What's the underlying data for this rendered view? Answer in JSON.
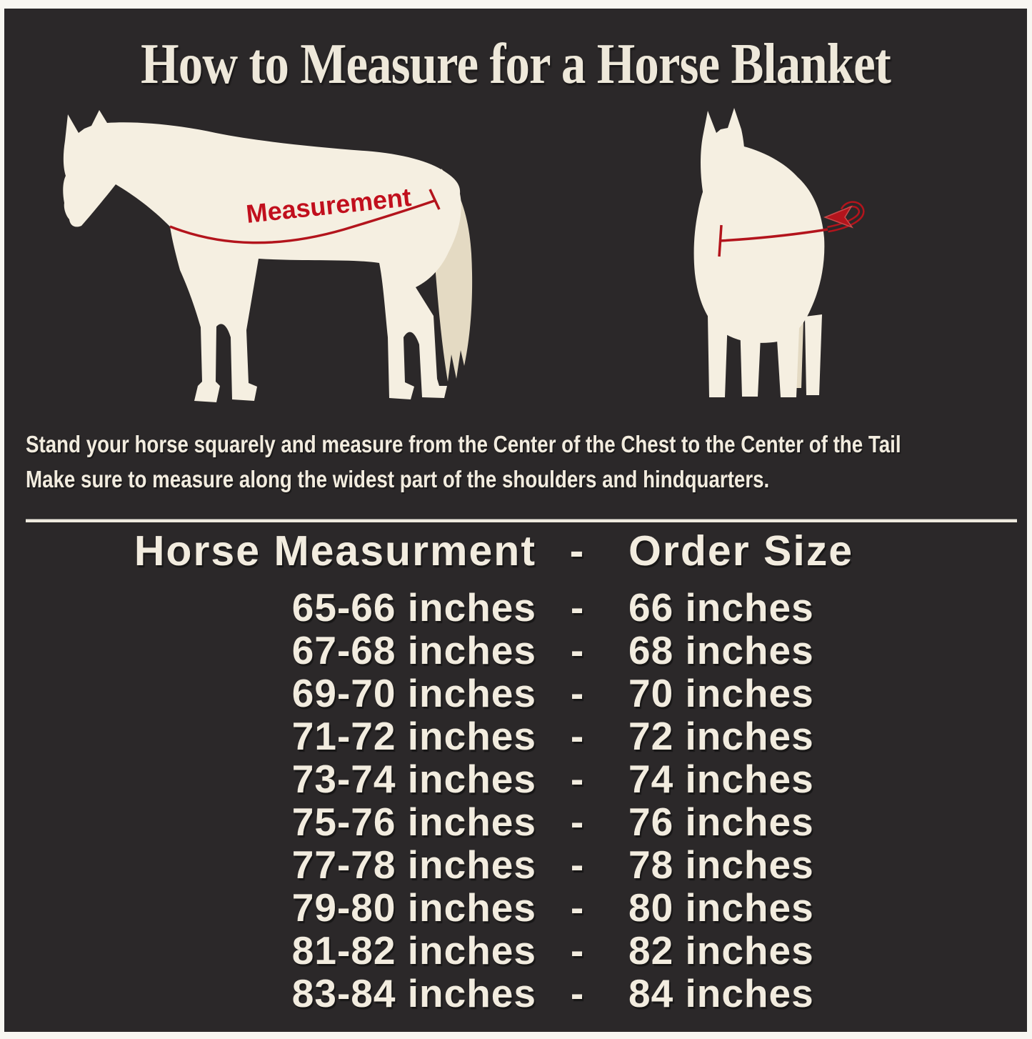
{
  "colors": {
    "background": "#2b2829",
    "frame": "#f8f6f1",
    "cream_text": "#f2ecdf",
    "horse_body": "#f5efe1",
    "horse_tail": "#e4dac3",
    "accent_red": "#b3141c",
    "label_red": "#c10f1d"
  },
  "title": "How to Measure for a Horse Blanket",
  "diagram": {
    "measurement_label": "Measurement"
  },
  "instructions": {
    "line1": "Stand your horse squarely and measure from the Center of the Chest to the Center of the Tail",
    "line2": "Make sure to measure along the widest part of the shoulders and hindquarters."
  },
  "size_table": {
    "header": {
      "measurement_col": "Horse Measurment",
      "separator": "-",
      "order_col": "Order Size"
    },
    "separator": "-",
    "rows": [
      {
        "measurement": "65-66 inches",
        "order": "66 inches"
      },
      {
        "measurement": "67-68 inches",
        "order": "68 inches"
      },
      {
        "measurement": "69-70 inches",
        "order": "70 inches"
      },
      {
        "measurement": "71-72 inches",
        "order": "72 inches"
      },
      {
        "measurement": "73-74 inches",
        "order": "74 inches"
      },
      {
        "measurement": "75-76 inches",
        "order": "76 inches"
      },
      {
        "measurement": "77-78 inches",
        "order": "78 inches"
      },
      {
        "measurement": "79-80 inches",
        "order": "80 inches"
      },
      {
        "measurement": "81-82 inches",
        "order": "82 inches"
      },
      {
        "measurement": "83-84 inches",
        "order": "84 inches"
      }
    ]
  }
}
